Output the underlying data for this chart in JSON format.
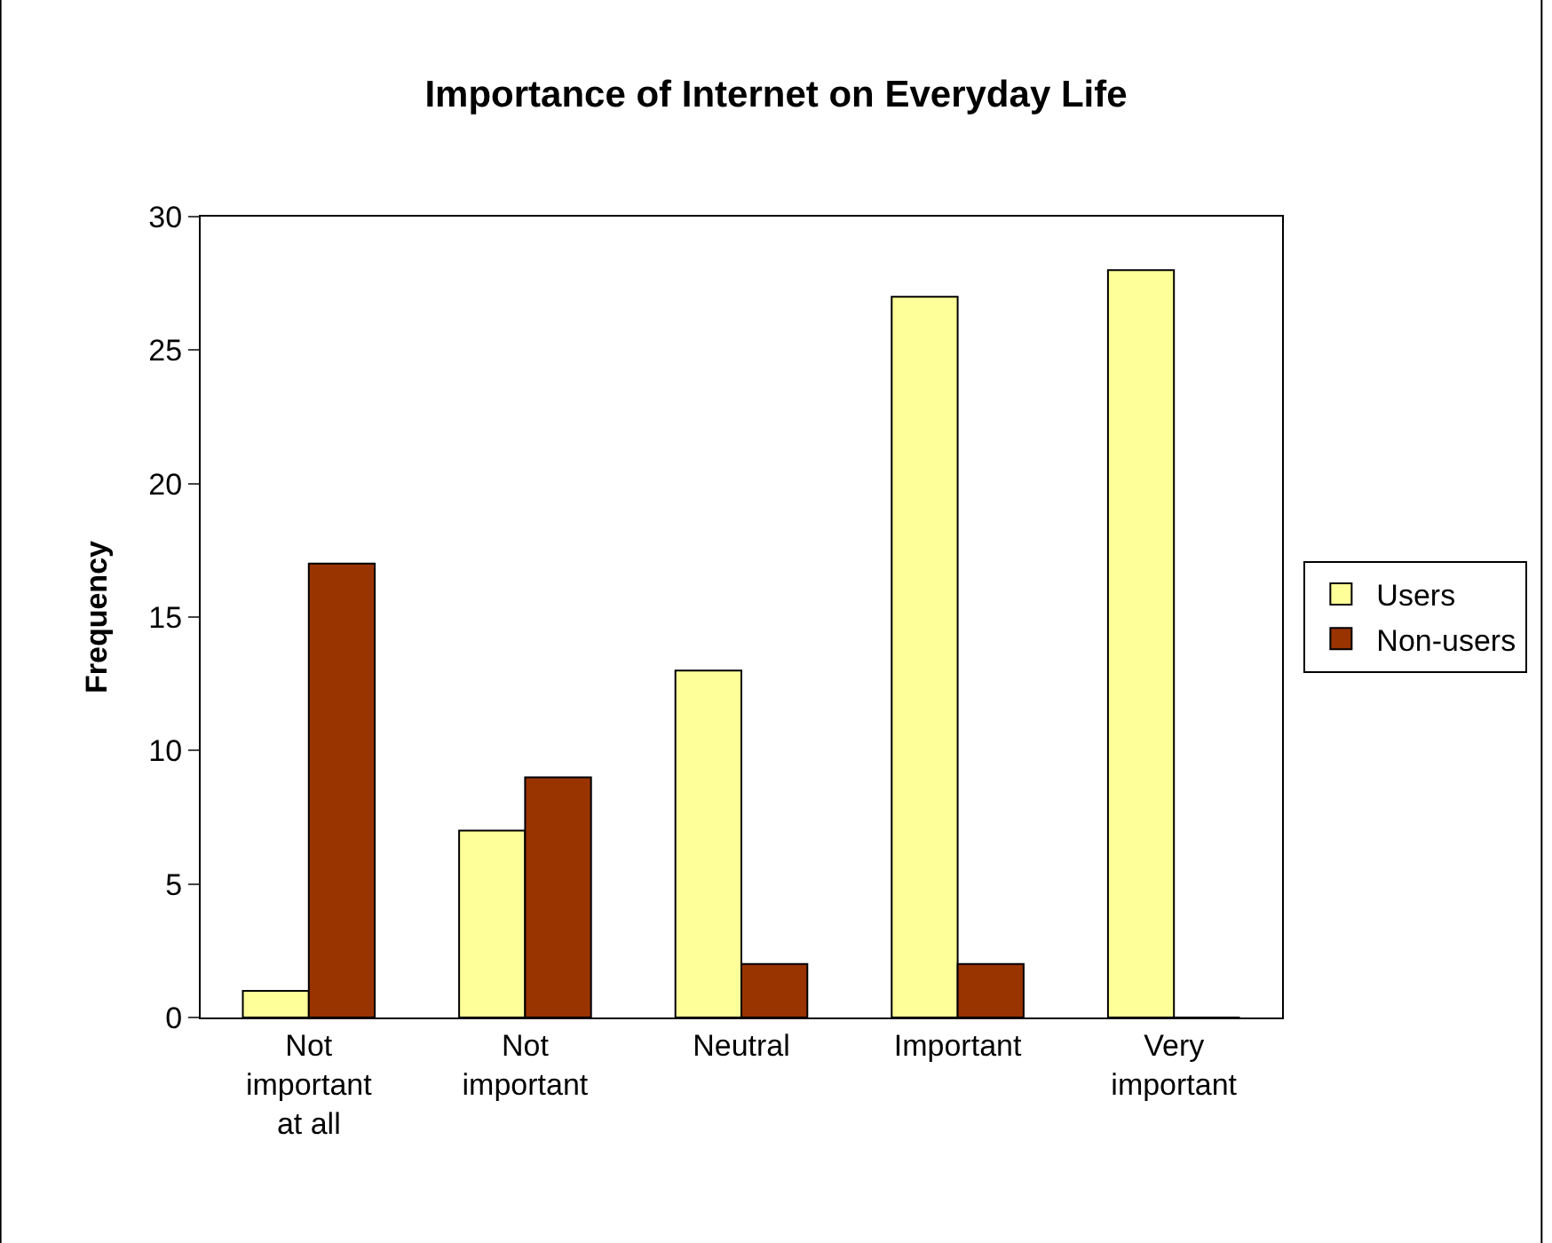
{
  "chart_data": {
    "type": "bar",
    "title": "Importance of Internet on Everyday Life",
    "ylabel": "Frequency",
    "categories": [
      "Not\nimportant\nat all",
      "Not\nimportant",
      "Neutral",
      "Important",
      "Very\nimportant"
    ],
    "series": [
      {
        "name": "Users",
        "color": "#ffff99",
        "values": [
          1,
          7,
          13,
          27,
          28
        ]
      },
      {
        "name": "Non-users",
        "color": "#993300",
        "values": [
          17,
          9,
          2,
          2,
          0
        ]
      }
    ],
    "ylim": [
      0,
      30
    ],
    "yticks": [
      0,
      5,
      10,
      15,
      20,
      25,
      30
    ],
    "legend": "right"
  }
}
